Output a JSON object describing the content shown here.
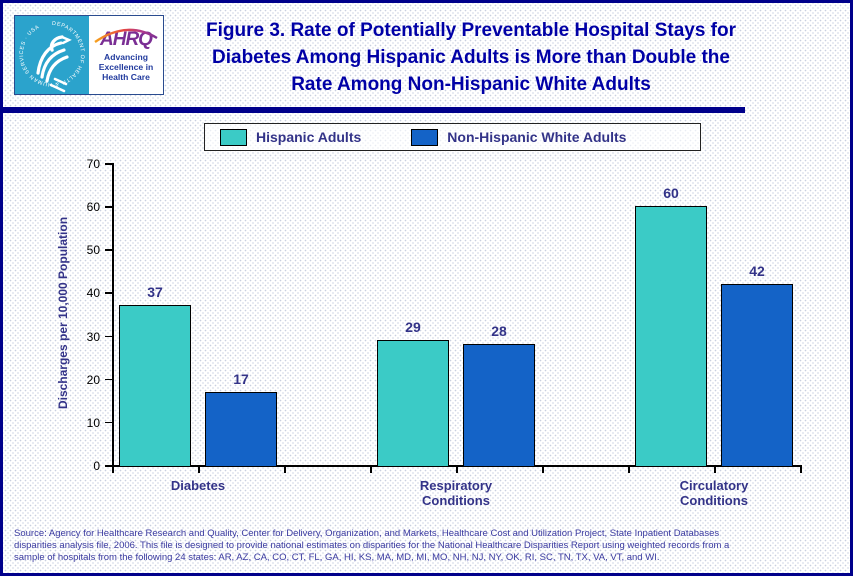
{
  "header": {
    "title_lines": [
      "Figure 3. Rate of Potentially Preventable Hospital Stays for",
      "Diabetes Among Hispanic Adults is More than Double the",
      "Rate Among Non-Hispanic White Adults"
    ],
    "logo": {
      "hhs_seal_text": "DEPARTMENT OF HEALTH & HUMAN SERVICES · USA",
      "ahrq_wordmark": "AHRQ",
      "ahrq_tagline_lines": [
        "Advancing",
        "Excellence in",
        "Health Care"
      ]
    }
  },
  "colors": {
    "hispanic_teal": "#3BCBC6",
    "nonhispanic_blue": "#1463C7",
    "title_navy": "#0000A6",
    "label_navy": "#333388",
    "border_navy": "#00008B"
  },
  "chart_data": {
    "type": "bar",
    "title": "Figure 3. Rate of Potentially Preventable Hospital Stays for Diabetes Among Hispanic Adults is More than Double the Rate Among Non-Hispanic White Adults",
    "categories": [
      "Diabetes",
      "Respiratory Conditions",
      "Circulatory Conditions"
    ],
    "categories_display": [
      [
        "Diabetes"
      ],
      [
        "Respiratory",
        "Conditions"
      ],
      [
        "Circulatory",
        "Conditions"
      ]
    ],
    "series": [
      {
        "name": "Hispanic Adults",
        "color": "#3BCBC6",
        "values": [
          37,
          29,
          60
        ]
      },
      {
        "name": "Non-Hispanic White Adults",
        "color": "#1463C7",
        "values": [
          17,
          28,
          42
        ]
      }
    ],
    "xlabel": "",
    "ylabel": "Discharges per 10,000 Population",
    "ylim": [
      0,
      70
    ],
    "yticks": [
      0,
      10,
      20,
      30,
      40,
      50,
      60,
      70
    ],
    "grid": false,
    "legend_position": "top",
    "bar_value_labels": true
  },
  "footer": {
    "source_lines": [
      "Source: Agency for Healthcare Research and Quality, Center for Delivery, Organization, and Markets, Healthcare Cost and Utilization Project, State Inpatient Databases",
      "disparities analysis file, 2006. This file is designed to provide national estimates on disparities for the National Healthcare Disparities Report using weighted records from a",
      "sample of hospitals from the following 24 states: AR, AZ, CA, CO, CT, FL, GA, HI, KS, MA, MD, MI, MO, NH, NJ, NY, OK, RI, SC, TN, TX, VA, VT, and WI."
    ]
  }
}
